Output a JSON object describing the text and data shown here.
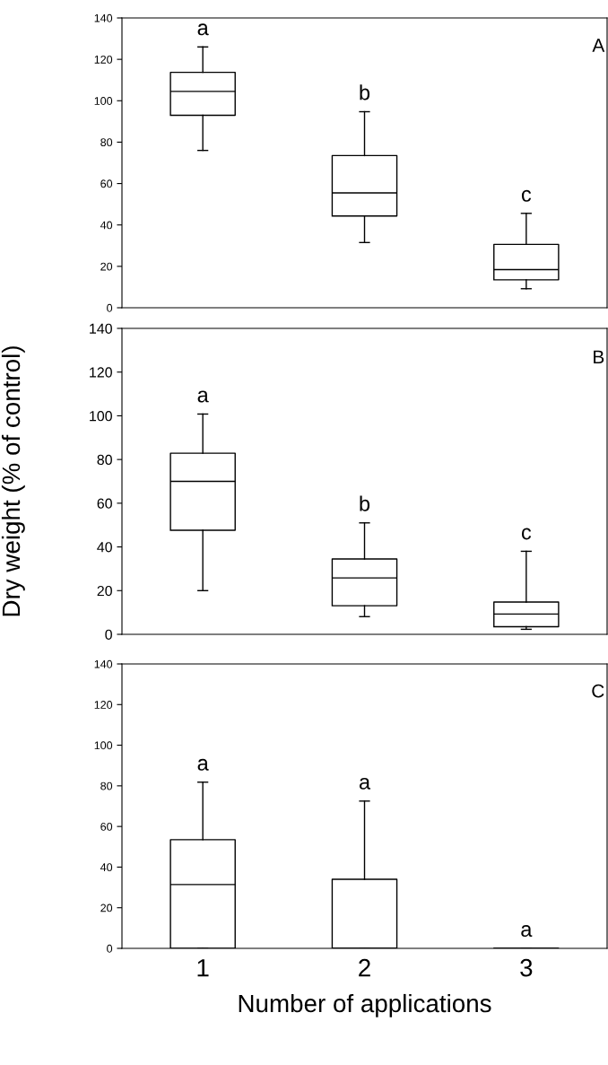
{
  "chart_data": [
    {
      "type": "box",
      "categories": [
        "1",
        "2",
        "3"
      ],
      "ylim": [
        0,
        140
      ],
      "yticks": [
        0,
        20,
        40,
        60,
        80,
        100,
        120,
        140
      ],
      "tick_labels": "y",
      "grid": false,
      "boxes": [
        {
          "low": 76,
          "q1": 93,
          "median": 104.5,
          "q3": 113.7,
          "high": 126
        },
        {
          "low": 31.5,
          "q1": 44.3,
          "median": 55.5,
          "q3": 73.5,
          "high": 94.7
        },
        {
          "low": 9.2,
          "q1": 13.5,
          "median": 18.4,
          "q3": 30.6,
          "high": 45.6
        }
      ],
      "annotations": [
        "A",
        "a",
        "b",
        "c"
      ]
    },
    {
      "type": "box",
      "categories": [
        "1",
        "2",
        "3"
      ],
      "ylim": [
        0,
        140
      ],
      "yticks": [
        0,
        20,
        40,
        60,
        80,
        100,
        120,
        140
      ],
      "tick_labels": "y",
      "grid": false,
      "ylabel": "Dry weight (% of control)",
      "boxes": [
        {
          "low": 20,
          "q1": 47.6,
          "median": 70,
          "q3": 82.9,
          "high": 100.8
        },
        {
          "low": 8.1,
          "q1": 13.1,
          "median": 25.8,
          "q3": 34.5,
          "high": 51
        },
        {
          "low": 2.3,
          "q1": 3.5,
          "median": 9.3,
          "q3": 14.8,
          "high": 38
        }
      ],
      "annotations": [
        "B",
        "a",
        "b",
        "c"
      ]
    },
    {
      "type": "box",
      "categories": [
        "1",
        "2",
        "3"
      ],
      "ylim": [
        0,
        140
      ],
      "yticks": [
        0,
        20,
        40,
        60,
        80,
        100,
        120,
        140
      ],
      "grid": false,
      "xlabel": "Number of applications",
      "boxes": [
        {
          "low": 0,
          "q1": 0,
          "median": 31.4,
          "q3": 53.5,
          "high": 81.8
        },
        {
          "low": 0,
          "q1": 0,
          "median": 0,
          "q3": 34,
          "high": 72.5
        },
        {
          "low": 0,
          "q1": 0,
          "median": 0,
          "q3": 0,
          "high": 0
        }
      ],
      "annotations": [
        "C",
        "a",
        "a",
        "a"
      ]
    }
  ]
}
